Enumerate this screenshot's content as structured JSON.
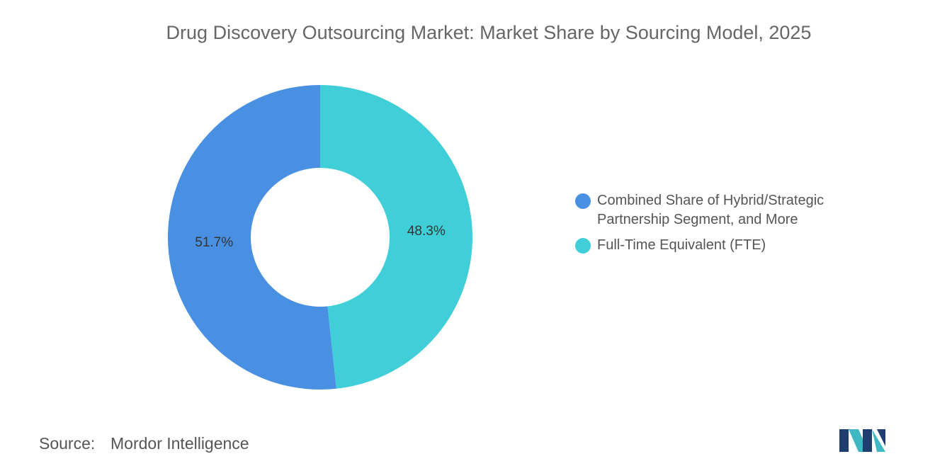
{
  "chart_data": {
    "type": "donut",
    "title": "Drug Discovery Outsourcing Market: Market Share by Sourcing Model, 2025",
    "categories": [
      "Combined Share of Hybrid/Strategic Partnership Segment, and More",
      "Full-Time Equivalent (FTE)"
    ],
    "values": [
      51.7,
      48.3
    ],
    "value_labels": [
      "51.7%",
      "48.3%"
    ],
    "colors": [
      "#4a90e2",
      "#40cfd9"
    ],
    "source_label": "Source:",
    "source": "Mordor Intelligence"
  }
}
